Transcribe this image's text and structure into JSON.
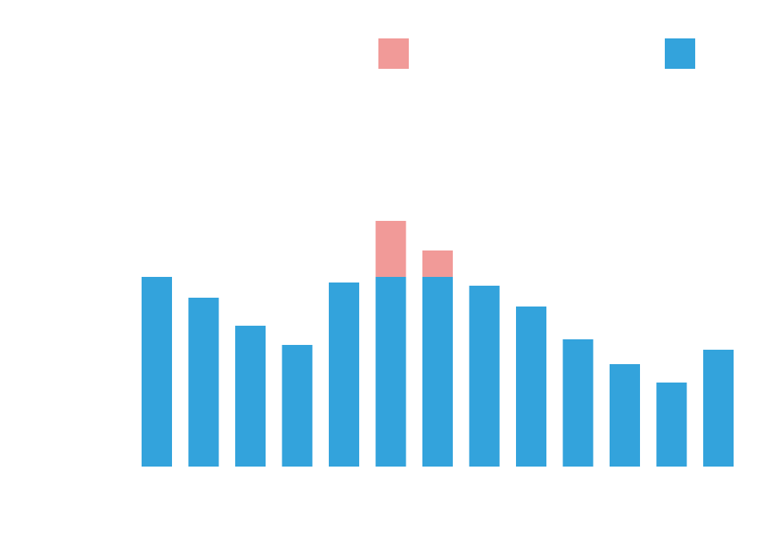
{
  "chart_data": {
    "type": "bar",
    "stacked": true,
    "categories": [
      "",
      "",
      "",
      "",
      "",
      "",
      "",
      "",
      "",
      "",
      "",
      "",
      ""
    ],
    "series": [
      {
        "color": "#33a3dc",
        "values": [
          237,
          211,
          176,
          152,
          230,
          237,
          237,
          226,
          200,
          159,
          128,
          105,
          146
        ]
      },
      {
        "color": "#f19a98",
        "values": [
          0,
          0,
          0,
          0,
          0,
          70,
          33,
          0,
          0,
          0,
          0,
          0,
          0
        ]
      }
    ],
    "ylim": [
      0,
      583
    ],
    "legend": {
      "placement": "top",
      "entries": [
        {
          "color": "#f19a98",
          "label": ""
        },
        {
          "color": "#33a3dc",
          "label": ""
        }
      ]
    },
    "title": "",
    "xlabel": "",
    "ylabel": "",
    "grid": false
  }
}
